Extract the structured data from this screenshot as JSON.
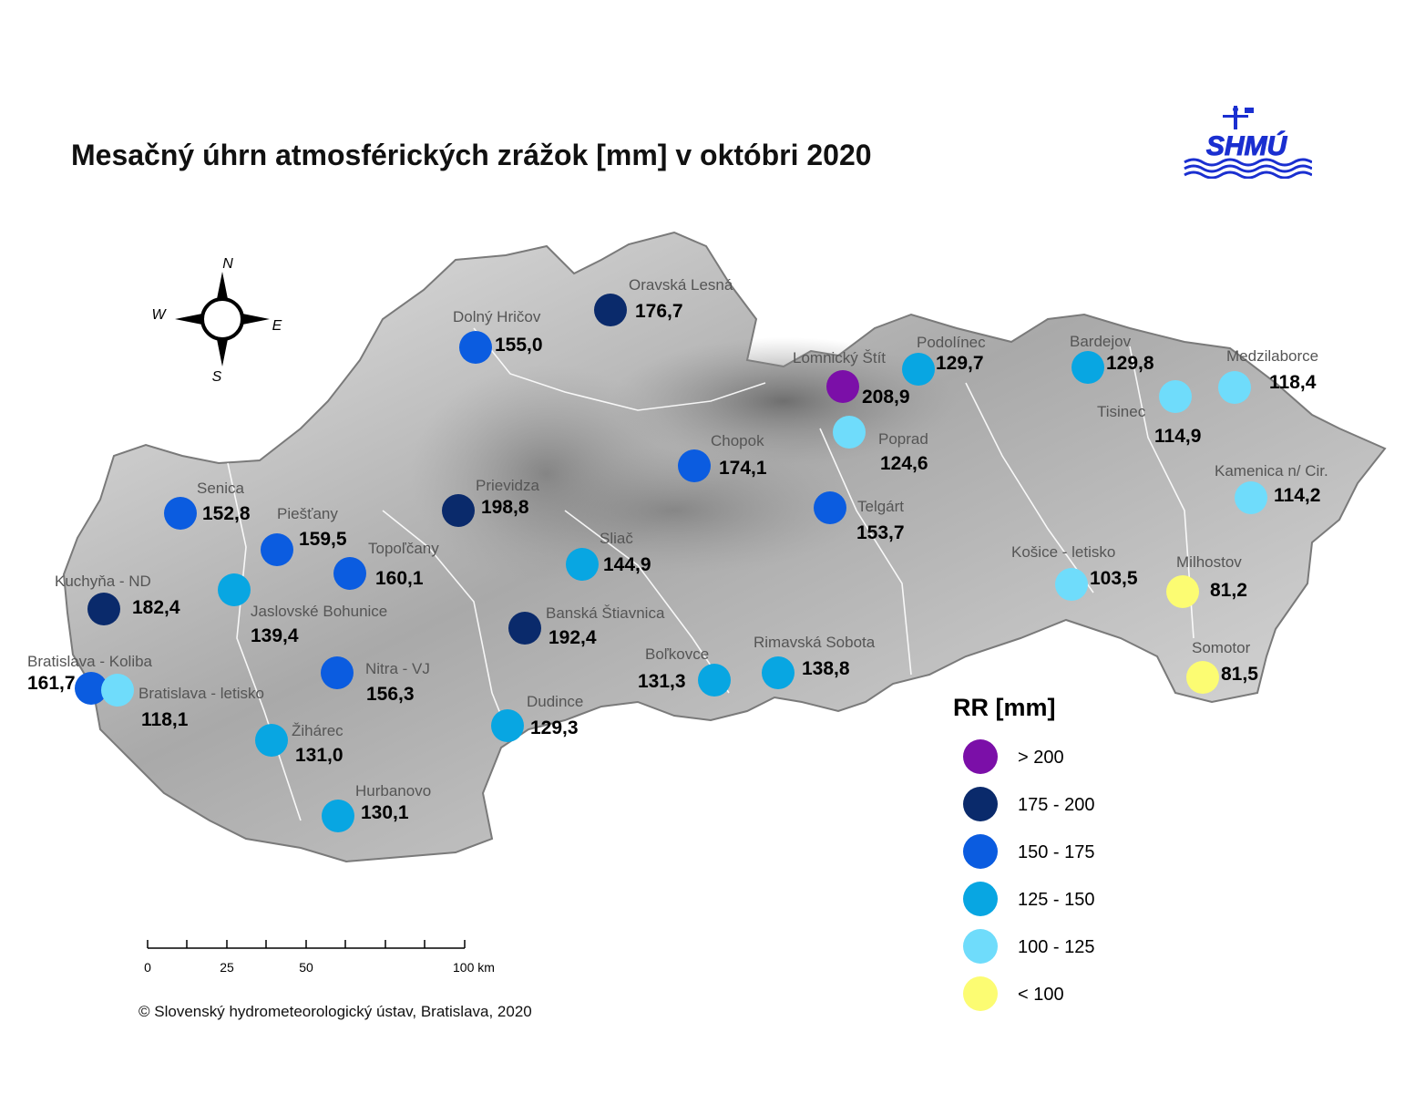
{
  "title": "Mesačný úhrn atmosférických zrážok [mm] v októbri 2020",
  "logo_text": "SHMÚ",
  "copyright": "© Slovenský hydrometeorologický ústav, Bratislava, 2020",
  "compass": {
    "n": "N",
    "s": "S",
    "e": "E",
    "w": "W"
  },
  "scale": {
    "ticks": [
      "0",
      "25",
      "50",
      "100 km"
    ]
  },
  "legend": {
    "title": "RR [mm]",
    "classes": [
      {
        "label": "> 200",
        "color": "#7b0fa8"
      },
      {
        "label": "175 - 200",
        "color": "#0a2a6b"
      },
      {
        "label": "150 - 175",
        "color": "#0b5ce0"
      },
      {
        "label": "125 - 150",
        "color": "#08a6e2"
      },
      {
        "label": "100 - 125",
        "color": "#6fdcfb"
      },
      {
        "label": "< 100",
        "color": "#fcfc72"
      }
    ]
  },
  "stations": [
    {
      "name": "Oravská Lesná",
      "value": "176,7",
      "cls": 1
    },
    {
      "name": "Dolný Hričov",
      "value": "155,0",
      "cls": 2
    },
    {
      "name": "Lomnický Štít",
      "value": "208,9",
      "cls": 0
    },
    {
      "name": "Podolínec",
      "value": "129,7",
      "cls": 3
    },
    {
      "name": "Bardejov",
      "value": "129,8",
      "cls": 3
    },
    {
      "name": "Medzilaborce",
      "value": "118,4",
      "cls": 4
    },
    {
      "name": "Tisinec",
      "value": "114,9",
      "cls": 4
    },
    {
      "name": "Poprad",
      "value": "124,6",
      "cls": 4
    },
    {
      "name": "Chopok",
      "value": "174,1",
      "cls": 2
    },
    {
      "name": "Kamenica n/ Cir.",
      "value": "114,2",
      "cls": 4
    },
    {
      "name": "Senica",
      "value": "152,8",
      "cls": 2
    },
    {
      "name": "Prievidza",
      "value": "198,8",
      "cls": 1
    },
    {
      "name": "Telgárt",
      "value": "153,7",
      "cls": 2
    },
    {
      "name": "Piešťany",
      "value": "159,5",
      "cls": 2
    },
    {
      "name": "Topoľčany",
      "value": "160,1",
      "cls": 2
    },
    {
      "name": "Sliač",
      "value": "144,9",
      "cls": 3
    },
    {
      "name": "Košice - letisko",
      "value": "103,5",
      "cls": 4
    },
    {
      "name": "Milhostov",
      "value": "81,2",
      "cls": 5
    },
    {
      "name": "Kuchyňa - ND",
      "value": "182,4",
      "cls": 1
    },
    {
      "name": "Jaslovské Bohunice",
      "value": "139,4",
      "cls": 3
    },
    {
      "name": "Banská Štiavnica",
      "value": "192,4",
      "cls": 1
    },
    {
      "name": "Somotor",
      "value": "81,5",
      "cls": 5
    },
    {
      "name": "Bratislava - Koliba",
      "value": "161,7",
      "cls": 2
    },
    {
      "name": "Bratislava - letisko",
      "value": "118,1",
      "cls": 4
    },
    {
      "name": "Nitra - VJ",
      "value": "156,3",
      "cls": 2
    },
    {
      "name": "Boľkovce",
      "value": "131,3",
      "cls": 3
    },
    {
      "name": "Rimavská Sobota",
      "value": "138,8",
      "cls": 3
    },
    {
      "name": "Žihárec",
      "value": "131,0",
      "cls": 3
    },
    {
      "name": "Dudince",
      "value": "129,3",
      "cls": 3
    },
    {
      "name": "Hurbanovo",
      "value": "130,1",
      "cls": 3
    }
  ]
}
